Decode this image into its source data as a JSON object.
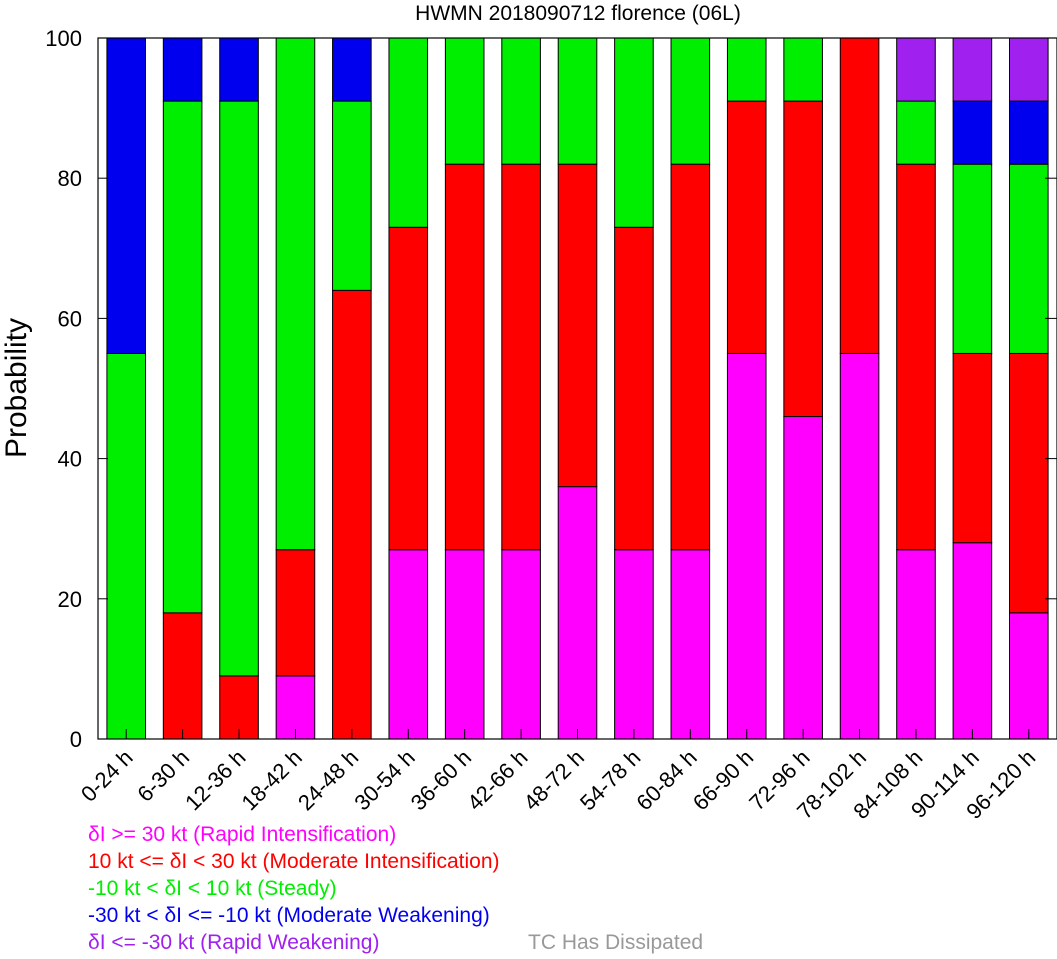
{
  "chart_data": {
    "type": "bar",
    "stacked": true,
    "title": "HWMN 2018090712 florence (06L)",
    "xlabel": "",
    "ylabel": "Probability",
    "ylim": [
      0,
      100
    ],
    "yticks": [
      "0",
      "20",
      "40",
      "60",
      "80",
      "100"
    ],
    "grid": false,
    "categories": [
      "0-24 h",
      "6-30 h",
      "12-36 h",
      "18-42 h",
      "24-48 h",
      "30-54 h",
      "36-60 h",
      "42-66 h",
      "48-72 h",
      "54-78 h",
      "60-84 h",
      "66-90 h",
      "72-96 h",
      "78-102 h",
      "84-108 h",
      "90-114 h",
      "96-120 h"
    ],
    "series": [
      {
        "name": "δI >= 30 kt (Rapid Intensification)",
        "color": "#ff00ff",
        "values": [
          0,
          0,
          0,
          9,
          0,
          27,
          27,
          27,
          36,
          27,
          27,
          55,
          46,
          55,
          27,
          28,
          18
        ]
      },
      {
        "name": "10 kt <= δI < 30 kt (Moderate Intensification)",
        "color": "#ff0000",
        "values": [
          0,
          18,
          9,
          18,
          64,
          46,
          55,
          55,
          46,
          46,
          55,
          36,
          45,
          45,
          55,
          27,
          37
        ]
      },
      {
        "name": "-10 kt < δI < 10 kt (Steady)",
        "color": "#00ee00",
        "values": [
          55,
          73,
          82,
          73,
          27,
          27,
          18,
          18,
          18,
          27,
          18,
          9,
          9,
          0,
          9,
          27,
          27
        ]
      },
      {
        "name": "-30 kt < δI <= -10 kt (Moderate Weakening)",
        "color": "#0000ee",
        "values": [
          45,
          9,
          9,
          0,
          9,
          0,
          0,
          0,
          0,
          0,
          0,
          0,
          0,
          0,
          0,
          9,
          9
        ]
      },
      {
        "name": "δI <= -30 kt (Rapid Weakening)",
        "color": "#a020f0",
        "values": [
          0,
          0,
          0,
          0,
          0,
          0,
          0,
          0,
          0,
          0,
          0,
          0,
          0,
          0,
          9,
          9,
          9
        ]
      },
      {
        "name": "TC Has Dissipated",
        "color": "#999999",
        "values": [
          0,
          0,
          0,
          0,
          0,
          0,
          0,
          0,
          0,
          0,
          0,
          0,
          0,
          0,
          0,
          0,
          0
        ]
      }
    ],
    "legend_position": "bottom-left"
  },
  "legend": {
    "rapid_intensification": "δI >= 30 kt (Rapid Intensification)",
    "moderate_intensification": "10 kt <= δI < 30 kt (Moderate Intensification)",
    "steady": "-10 kt < δI < 10 kt (Steady)",
    "moderate_weakening": "-30 kt < δI <= -10 kt (Moderate Weakening)",
    "rapid_weakening": "δI <= -30 kt (Rapid Weakening)",
    "dissipated": "TC Has Dissipated"
  }
}
